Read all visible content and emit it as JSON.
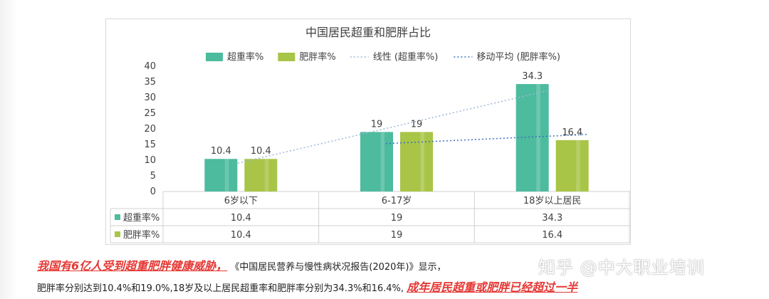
{
  "chart_data": {
    "type": "bar",
    "title": "中国居民超重和肥胖占比",
    "categories": [
      "6岁以下",
      "6-17岁",
      "18岁以上居民"
    ],
    "series": [
      {
        "name": "超重率%",
        "values": [
          10.4,
          19,
          34.3
        ],
        "color": "#4dbb9d"
      },
      {
        "name": "肥胖率%",
        "values": [
          10.4,
          19,
          16.4
        ],
        "color": "#a8c547"
      }
    ],
    "data_labels": {
      "超重率%": [
        "10.4",
        "19",
        "34.3"
      ],
      "肥胖率%": [
        "10.4",
        "19",
        "16.4"
      ]
    },
    "trendlines": [
      {
        "name": "线性 (超重率%)",
        "style": "dotted",
        "color": "#9db6d8"
      },
      {
        "name": "移动平均 (肥胖率%)",
        "style": "dotted",
        "color": "#3b6fc0"
      }
    ],
    "ylim": [
      0,
      40
    ],
    "yticks": [
      0,
      5,
      10,
      15,
      20,
      25,
      30,
      35,
      40
    ],
    "legend_position": "top",
    "data_table": true
  },
  "caption": {
    "lead_red": "我国有6亿人受到超重肥胖健康威胁，",
    "line1_text": "《中国居民营养与慢性病状况报告(2020年)》显示，",
    "line2_text": "肥胖率分别达到10.4%和19.0%,18岁及以上居民超重率和肥胖率分别为34.3%和16.4%,",
    "line2_red": "成年居民超重或肥胖已经超过一半"
  },
  "watermark": "知乎 @中大职业培训"
}
